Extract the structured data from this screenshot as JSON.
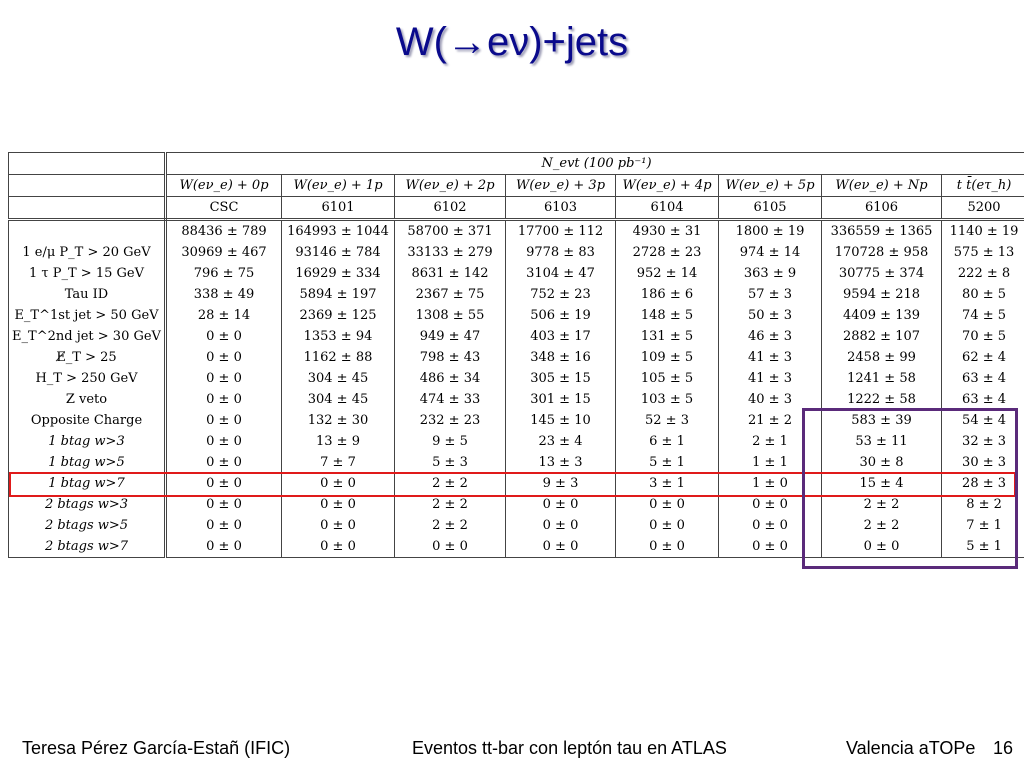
{
  "title": "W(→eν)+jets",
  "table": {
    "top_header": "N_evt (100 pb⁻¹)",
    "columns": [
      "W(eν_e) + 0p",
      "W(eν_e) + 1p",
      "W(eν_e) + 2p",
      "W(eν_e) + 3p",
      "W(eν_e) + 4p",
      "W(eν_e) + 5p",
      "W(eν_e) + Np",
      "t t̄(eτ_h)"
    ],
    "dataset_label": "CSC",
    "dataset_ids": [
      "6101",
      "6102",
      "6103",
      "6104",
      "6105",
      "6106",
      "5200"
    ],
    "rows": [
      {
        "label": "",
        "values": [
          "88436 ± 789",
          "164993 ± 1044",
          "58700 ± 371",
          "17700 ± 112",
          "4930 ± 31",
          "1800 ± 19",
          "336559 ± 1365",
          "1140 ± 19"
        ]
      },
      {
        "label": "1 e/μ P_T > 20 GeV",
        "values": [
          "30969 ± 467",
          "93146 ± 784",
          "33133 ± 279",
          "9778 ± 83",
          "2728 ± 23",
          "974 ± 14",
          "170728 ± 958",
          "575 ± 13"
        ]
      },
      {
        "label": "1 τ P_T > 15 GeV",
        "values": [
          "796 ± 75",
          "16929 ± 334",
          "8631 ± 142",
          "3104 ± 47",
          "952 ± 14",
          "363 ± 9",
          "30775 ± 374",
          "222 ± 8"
        ]
      },
      {
        "label": "Tau ID",
        "values": [
          "338 ± 49",
          "5894 ± 197",
          "2367 ± 75",
          "752 ± 23",
          "186 ± 6",
          "57 ± 3",
          "9594 ± 218",
          "80 ± 5"
        ]
      },
      {
        "label": "E_T^1st jet > 50 GeV",
        "values": [
          "28 ± 14",
          "2369 ± 125",
          "1308 ± 55",
          "506 ± 19",
          "148 ± 5",
          "50 ± 3",
          "4409 ± 139",
          "74 ± 5"
        ]
      },
      {
        "label": "E_T^2nd jet > 30 GeV",
        "values": [
          "0 ± 0",
          "1353 ± 94",
          "949 ± 47",
          "403 ± 17",
          "131 ± 5",
          "46 ± 3",
          "2882 ± 107",
          "70 ± 5"
        ]
      },
      {
        "label": "E̸_T > 25",
        "values": [
          "0 ± 0",
          "1162 ± 88",
          "798 ± 43",
          "348 ± 16",
          "109 ± 5",
          "41 ± 3",
          "2458 ± 99",
          "62 ± 4"
        ]
      },
      {
        "label": "H_T > 250 GeV",
        "values": [
          "0 ± 0",
          "304 ± 45",
          "486 ± 34",
          "305 ± 15",
          "105 ± 5",
          "41 ± 3",
          "1241 ± 58",
          "63 ± 4"
        ]
      },
      {
        "label": "Z veto",
        "values": [
          "0 ± 0",
          "304 ± 45",
          "474 ± 33",
          "301 ± 15",
          "103 ± 5",
          "40 ± 3",
          "1222 ± 58",
          "63 ± 4"
        ]
      },
      {
        "label": "Opposite Charge",
        "values": [
          "0 ± 0",
          "132 ± 30",
          "232 ± 23",
          "145 ± 10",
          "52 ± 3",
          "21 ± 2",
          "583 ± 39",
          "54 ± 4"
        ]
      },
      {
        "label": "1 btag w>3",
        "values": [
          "0 ± 0",
          "13 ± 9",
          "9 ± 5",
          "23 ± 4",
          "6 ± 1",
          "2 ± 1",
          "53 ± 11",
          "32 ± 3"
        ]
      },
      {
        "label": "1 btag w>5",
        "values": [
          "0 ± 0",
          "7 ± 7",
          "5 ± 3",
          "13 ± 3",
          "5 ± 1",
          "1 ± 1",
          "30 ± 8",
          "30 ± 3"
        ]
      },
      {
        "label": "1 btag w>7",
        "values": [
          "0 ± 0",
          "0 ± 0",
          "2 ± 2",
          "9 ± 3",
          "3 ± 1",
          "1 ± 0",
          "15 ± 4",
          "28 ± 3"
        ]
      },
      {
        "label": "2 btags w>3",
        "values": [
          "0 ± 0",
          "0 ± 0",
          "2 ± 2",
          "0 ± 0",
          "0 ± 0",
          "0 ± 0",
          "2 ± 2",
          "8 ± 2"
        ]
      },
      {
        "label": "2 btags w>5",
        "values": [
          "0 ± 0",
          "0 ± 0",
          "2 ± 2",
          "0 ± 0",
          "0 ± 0",
          "0 ± 0",
          "2 ± 2",
          "7 ± 1"
        ]
      },
      {
        "label": "2 btags w>7",
        "values": [
          "0 ± 0",
          "0 ± 0",
          "0 ± 0",
          "0 ± 0",
          "0 ± 0",
          "0 ± 0",
          "0 ± 0",
          "5 ± 1"
        ]
      }
    ]
  },
  "footer": {
    "author": "Teresa Pérez García-Estañ (IFIC)",
    "talk": "Eventos tt-bar con leptón tau en ATLAS",
    "venue": "Valencia aTOPe",
    "page": "16"
  },
  "colors": {
    "title": "#0a0a8c",
    "highlight_row": "#e01a1a",
    "highlight_box": "#5a2a7a"
  }
}
